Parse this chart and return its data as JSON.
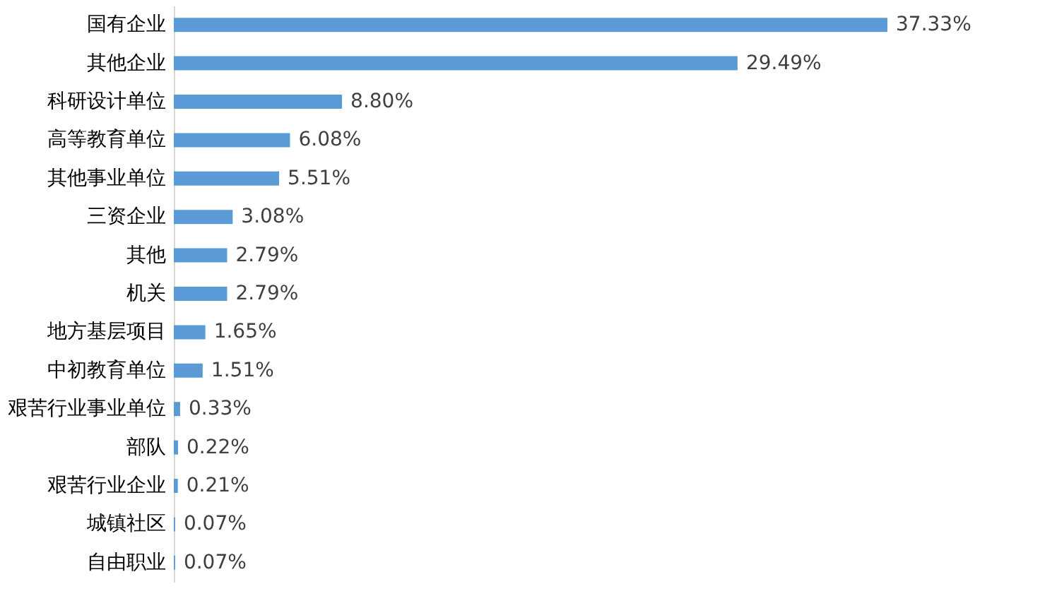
{
  "chart_data": {
    "type": "bar",
    "orientation": "horizontal",
    "color": "#5b9bd5",
    "categories": [
      "国有企业",
      "其他企业",
      "科研设计单位",
      "高等教育单位",
      "其他事业单位",
      "三资企业",
      "其他",
      "机关",
      "地方基层项目",
      "中初教育单位",
      "艰苦行业事业单位",
      "部队",
      "艰苦行业企业",
      "城镇社区",
      "自由职业"
    ],
    "values": [
      37.33,
      29.49,
      8.8,
      6.08,
      5.51,
      3.08,
      2.79,
      2.79,
      1.65,
      1.51,
      0.33,
      0.22,
      0.21,
      0.07,
      0.07
    ],
    "value_labels": [
      "37.33%",
      "29.49%",
      "8.80%",
      "6.08%",
      "5.51%",
      "3.08%",
      "2.79%",
      "2.79%",
      "1.65%",
      "1.51%",
      "0.33%",
      "0.22%",
      "0.21%",
      "0.07%",
      "0.07%"
    ]
  }
}
